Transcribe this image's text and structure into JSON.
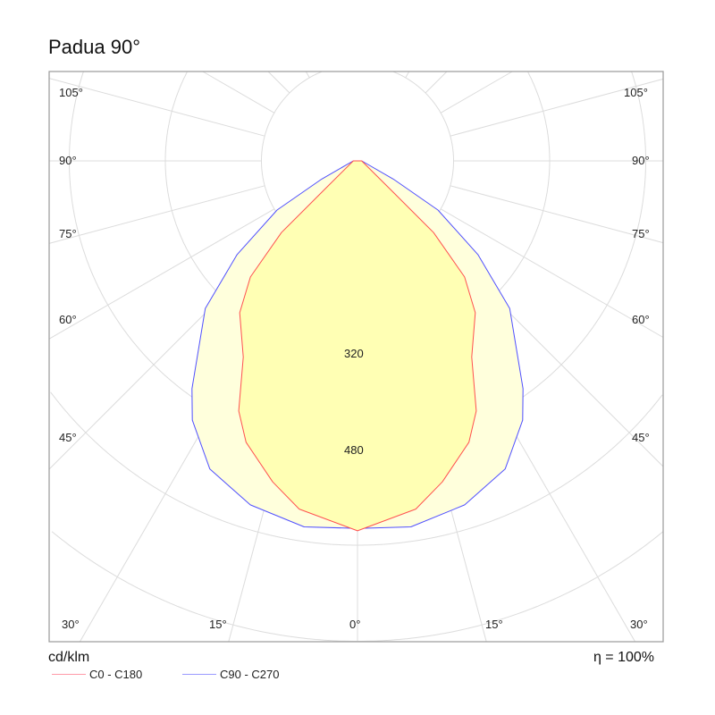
{
  "title": "Padua 90°",
  "chart_data": {
    "type": "polar",
    "unit": "cd/klm",
    "efficiency": "η = 100%",
    "ring_labels": [
      "320",
      "480"
    ],
    "ring_step": 160,
    "angle_labels": {
      "bottom": [
        "30°",
        "15°",
        "0°",
        "15°",
        "30°"
      ],
      "left": [
        "105°",
        "90°",
        "75°",
        "60°",
        "45°"
      ],
      "right": [
        "105°",
        "90°",
        "75°",
        "60°",
        "45°"
      ]
    },
    "series": [
      {
        "name": "C0 - C180",
        "color": "#ff5050",
        "fill": "#ffffb4",
        "angles": [
          0,
          9.5,
          14.8,
          21.6,
          25.4,
          30.2,
          37.8,
          42.7,
          46.7,
          48.8,
          90
        ],
        "values": [
          616,
          588,
          553,
          504,
          461,
          378,
          320,
          263,
          174,
          79,
          7
        ]
      },
      {
        "name": "C90 - C270",
        "color": "#5050ff",
        "fill": "#ffffdc",
        "angles": [
          0,
          8.3,
          17.3,
          25.6,
          32.5,
          36,
          45.9,
          52.1,
          58.6,
          63,
          90
        ],
        "values": [
          612,
          616,
          600,
          569,
          512,
          469,
          353,
          254,
          157,
          67,
          7
        ]
      }
    ]
  }
}
